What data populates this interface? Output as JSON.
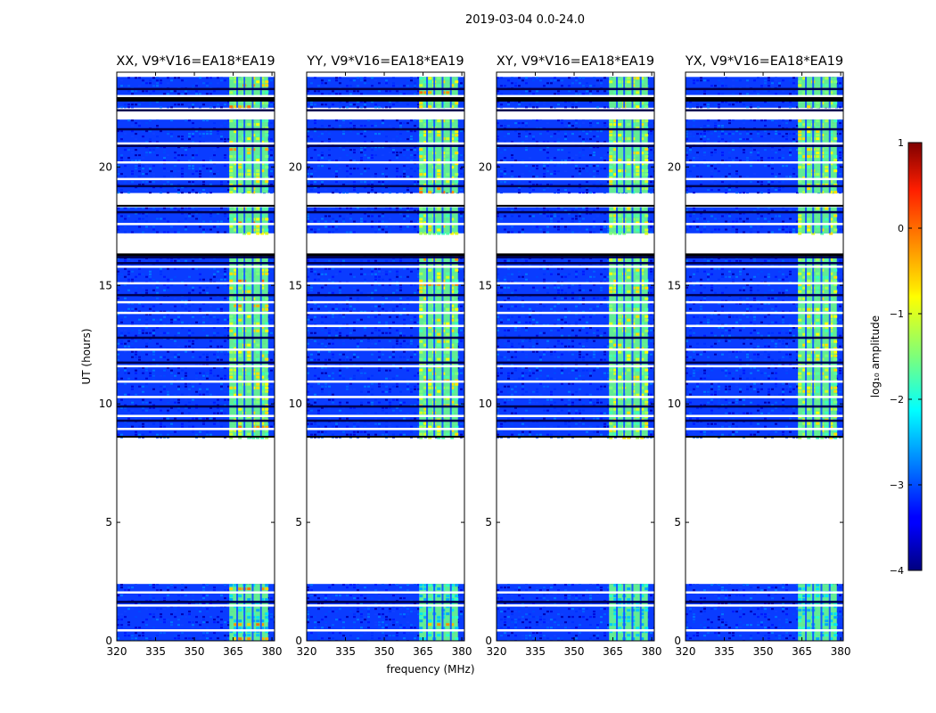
{
  "figure": {
    "suptitle": "2019-03-04 0.0-24.0"
  },
  "chart_data": {
    "type": "heatmap",
    "x_label": "frequency (MHz)",
    "y_label": "UT (hours)",
    "xlim": [
      320,
      381
    ],
    "ylim": [
      0,
      24
    ],
    "x_ticks": [
      320,
      335,
      350,
      365,
      380
    ],
    "y_ticks": [
      0,
      5,
      10,
      15,
      20
    ],
    "panels": [
      {
        "title": "XX, V9*V16=EA18*EA19",
        "show_y_label": true,
        "show_x_label": false
      },
      {
        "title": "YY, V9*V16=EA18*EA19",
        "show_y_label": false,
        "show_x_label": true
      },
      {
        "title": "XY, V9*V16=EA18*EA19",
        "show_y_label": false,
        "show_x_label": false
      },
      {
        "title": "YX, V9*V16=EA18*EA19",
        "show_y_label": false,
        "show_x_label": false
      }
    ],
    "data_segments_ut": [
      [
        0.0,
        2.4
      ],
      [
        8.6,
        16.3
      ],
      [
        17.2,
        18.3
      ],
      [
        18.9,
        22.0
      ],
      [
        22.5,
        23.8
      ]
    ],
    "empty_rows_ut": [
      0.45,
      1.5,
      2.05,
      8.95,
      9.5,
      10.3,
      10.95,
      11.6,
      12.3,
      13.3,
      13.85,
      14.3,
      15.1,
      15.8,
      17.6,
      19.5,
      20.2,
      21.0,
      23.0
    ],
    "dark_rows_ut": [
      1.65,
      9.3,
      9.9,
      11.75,
      12.8,
      14.6,
      15.95,
      16.2,
      18.1,
      19.2,
      20.9,
      21.6,
      22.4,
      23.3
    ],
    "bright_band_mhz": [
      363.5,
      378.5
    ],
    "band_gaps_mhz": [
      366.2,
      369.0,
      372.2,
      375.4
    ],
    "colorbar": {
      "label": "log₁₀ amplitude",
      "range": [
        -4,
        1
      ],
      "ticks": [
        1,
        0,
        -1,
        -2,
        -3,
        -4
      ],
      "tick_labels": [
        "1",
        "0",
        "−1",
        "−2",
        "−3",
        "−4"
      ],
      "colormap": "jet"
    }
  }
}
